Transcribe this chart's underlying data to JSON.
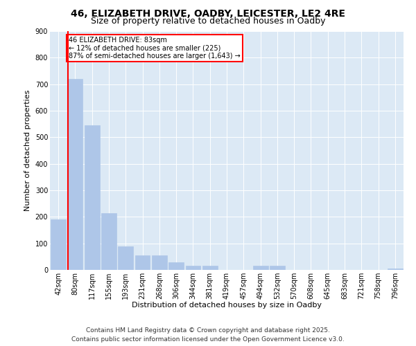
{
  "title_line1": "46, ELIZABETH DRIVE, OADBY, LEICESTER, LE2 4RE",
  "title_line2": "Size of property relative to detached houses in Oadby",
  "xlabel": "Distribution of detached houses by size in Oadby",
  "ylabel": "Number of detached properties",
  "bar_labels": [
    "42sqm",
    "80sqm",
    "117sqm",
    "155sqm",
    "193sqm",
    "231sqm",
    "268sqm",
    "306sqm",
    "344sqm",
    "381sqm",
    "419sqm",
    "457sqm",
    "494sqm",
    "532sqm",
    "570sqm",
    "608sqm",
    "645sqm",
    "683sqm",
    "721sqm",
    "758sqm",
    "796sqm"
  ],
  "bar_values": [
    190,
    720,
    545,
    215,
    90,
    55,
    55,
    30,
    15,
    15,
    0,
    0,
    15,
    15,
    0,
    0,
    0,
    0,
    0,
    0,
    5
  ],
  "bar_color": "#aec6e8",
  "bar_edge_color": "#aec6e8",
  "vline_color": "red",
  "annotation_title": "46 ELIZABETH DRIVE: 83sqm",
  "annotation_line2": "← 12% of detached houses are smaller (225)",
  "annotation_line3": "87% of semi-detached houses are larger (1,643) →",
  "plot_background": "#dce9f5",
  "ylim": [
    0,
    900
  ],
  "yticks": [
    0,
    100,
    200,
    300,
    400,
    500,
    600,
    700,
    800,
    900
  ],
  "footer_line1": "Contains HM Land Registry data © Crown copyright and database right 2025.",
  "footer_line2": "Contains public sector information licensed under the Open Government Licence v3.0.",
  "title_fontsize": 10,
  "subtitle_fontsize": 9,
  "axis_label_fontsize": 8,
  "tick_fontsize": 7,
  "annotation_fontsize": 7,
  "footer_fontsize": 6.5
}
